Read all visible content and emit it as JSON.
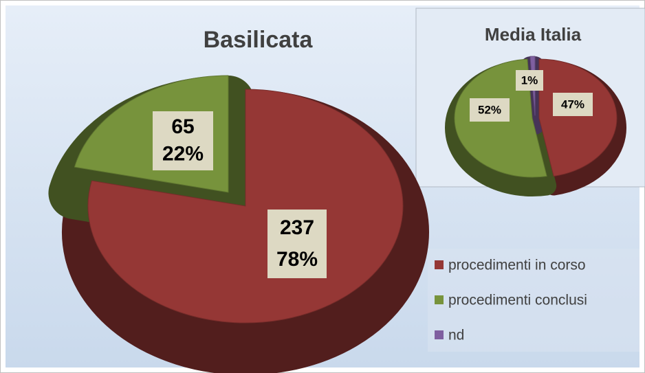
{
  "chart_data": [
    {
      "type": "pie",
      "title": "Basilicata",
      "categories": [
        "procedimenti in corso",
        "procedimenti conclusi"
      ],
      "values": [
        237,
        65
      ],
      "percent_labels": [
        "78%",
        "22%"
      ],
      "colors": [
        "#953735",
        "#77933c"
      ]
    },
    {
      "type": "pie",
      "title": "Media Italia",
      "categories": [
        "procedimenti in corso",
        "procedimenti conclusi",
        "nd"
      ],
      "values": [
        47,
        52,
        1
      ],
      "value_labels": [
        "47%",
        "52%",
        "1%"
      ],
      "colors": [
        "#953735",
        "#77933c",
        "#7f5fa0"
      ],
      "legend": "bottom-right"
    }
  ]
}
